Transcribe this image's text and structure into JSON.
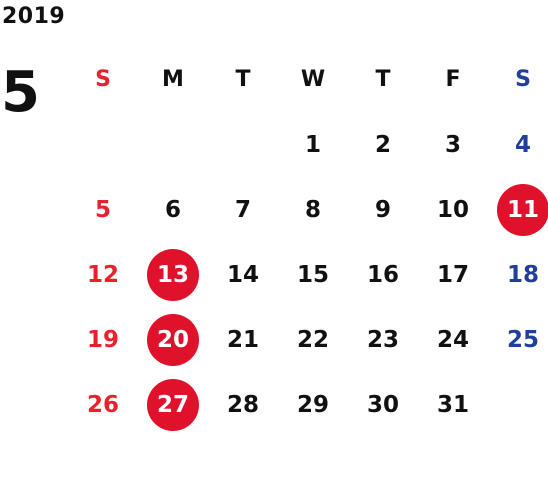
{
  "year": "2019",
  "month": "5",
  "weekdays": [
    "S",
    "M",
    "T",
    "W",
    "T",
    "F",
    "S"
  ],
  "colors": {
    "sunday": "#e8212c",
    "saturday": "#1f3f98",
    "highlight": "#e0112b",
    "text": "#111111"
  },
  "weeks": [
    [
      "",
      "",
      "",
      "1",
      "2",
      "3",
      "4"
    ],
    [
      "5",
      "6",
      "7",
      "8",
      "9",
      "10",
      "11"
    ],
    [
      "12",
      "13",
      "14",
      "15",
      "16",
      "17",
      "18"
    ],
    [
      "19",
      "20",
      "21",
      "22",
      "23",
      "24",
      "25"
    ],
    [
      "26",
      "27",
      "28",
      "29",
      "30",
      "31",
      ""
    ]
  ],
  "highlighted_days": [
    "11",
    "13",
    "20",
    "27"
  ]
}
